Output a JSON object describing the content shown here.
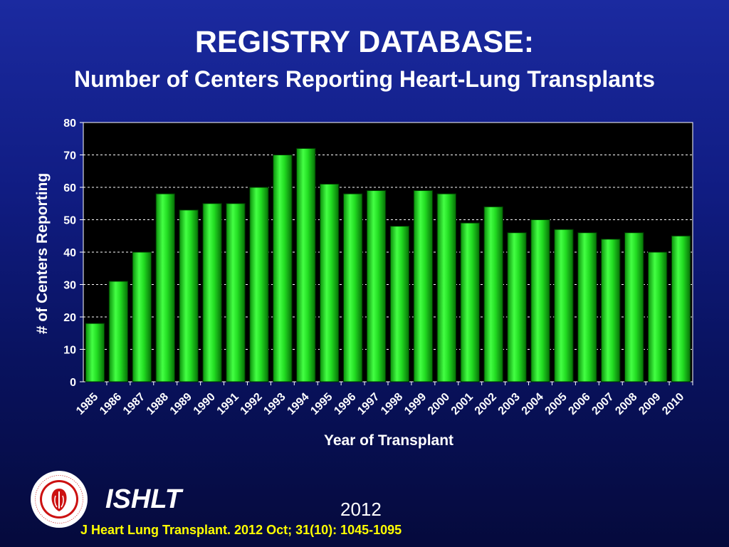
{
  "title": "REGISTRY DATABASE:",
  "subtitle": "Number of Centers Reporting Heart-Lung Transplants",
  "chart_data": {
    "type": "bar",
    "categories": [
      "1985",
      "1986",
      "1987",
      "1988",
      "1989",
      "1990",
      "1991",
      "1992",
      "1993",
      "1994",
      "1995",
      "1996",
      "1997",
      "1998",
      "1999",
      "2000",
      "2001",
      "2002",
      "2003",
      "2004",
      "2005",
      "2006",
      "2007",
      "2008",
      "2009",
      "2010"
    ],
    "values": [
      18,
      31,
      40,
      58,
      53,
      55,
      55,
      60,
      70,
      72,
      61,
      58,
      59,
      48,
      59,
      58,
      49,
      54,
      46,
      50,
      47,
      46,
      44,
      46,
      40,
      45
    ],
    "xlabel": "Year of Transplant",
    "ylabel": "# of Centers Reporting",
    "ylim": [
      0,
      80
    ],
    "yticks": [
      0,
      10,
      20,
      30,
      40,
      50,
      60,
      70,
      80
    ],
    "grid": "horizontal dashed",
    "bar_color": "#22dd22",
    "plot_background": "#000000"
  },
  "footer": {
    "org": "ISHLT",
    "year": "2012",
    "citation": "J Heart Lung Transplant.  2012 Oct; 31(10): 1045-1095",
    "logo_text": "INTERNATIONAL SOCIETY FOR HEART & LUNG TRANSPLANTATION"
  }
}
